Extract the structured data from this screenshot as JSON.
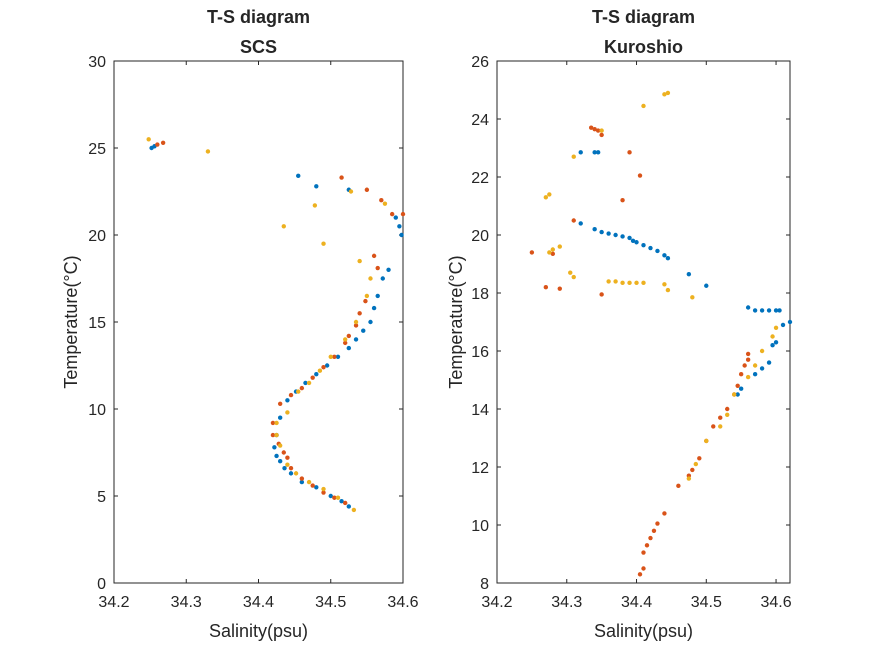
{
  "chart_data": [
    {
      "type": "scatter",
      "title": "T-S diagram",
      "subtitle": "SCS",
      "xlabel": "Salinity(psu)",
      "ylabel": "Temperature(°C)",
      "xlim": [
        34.2,
        34.6
      ],
      "ylim": [
        0,
        30
      ],
      "x_ticks": [
        "34.2",
        "34.3",
        "34.4",
        "34.5",
        "34.6"
      ],
      "y_ticks": [
        "0",
        "5",
        "10",
        "15",
        "20",
        "25",
        "30"
      ],
      "grid": false,
      "series": [
        {
          "color": "#0072BD",
          "x": [
            34.252,
            34.256,
            34.455,
            34.48,
            34.525,
            34.59,
            34.595,
            34.598,
            34.58,
            34.572,
            34.565,
            34.56,
            34.555,
            34.545,
            34.535,
            34.525,
            34.51,
            34.495,
            34.48,
            34.465,
            34.452,
            34.44,
            34.43,
            34.425,
            34.422,
            34.425,
            34.43,
            34.436,
            34.445,
            34.46,
            34.48,
            34.5,
            34.515,
            34.525
          ],
          "y": [
            25.0,
            25.1,
            23.4,
            22.8,
            22.6,
            21.0,
            20.5,
            20.0,
            18.0,
            17.5,
            16.5,
            15.8,
            15.0,
            14.5,
            14.0,
            13.5,
            13.0,
            12.5,
            12.0,
            11.5,
            11.0,
            10.5,
            9.5,
            8.5,
            7.8,
            7.3,
            7.0,
            6.6,
            6.3,
            5.8,
            5.5,
            5.0,
            4.7,
            4.4
          ]
        },
        {
          "color": "#D95319",
          "x": [
            34.26,
            34.268,
            34.515,
            34.55,
            34.57,
            34.585,
            34.6,
            34.56,
            34.565,
            34.548,
            34.54,
            34.535,
            34.525,
            34.52,
            34.505,
            34.49,
            34.475,
            34.46,
            34.445,
            34.43,
            34.42,
            34.42,
            34.428,
            34.435,
            34.44,
            34.445,
            34.46,
            34.475,
            34.49,
            34.505,
            34.52
          ],
          "y": [
            25.2,
            25.3,
            23.3,
            22.6,
            22.0,
            21.2,
            21.2,
            18.8,
            18.1,
            16.2,
            15.5,
            14.8,
            14.2,
            13.8,
            13.0,
            12.4,
            11.8,
            11.2,
            10.8,
            10.3,
            9.2,
            8.5,
            8.0,
            7.5,
            7.2,
            6.6,
            6.0,
            5.6,
            5.2,
            4.9,
            4.6
          ]
        },
        {
          "color": "#EDB120",
          "x": [
            34.248,
            34.33,
            34.435,
            34.478,
            34.49,
            34.528,
            34.575,
            34.54,
            34.555,
            34.55,
            34.535,
            34.52,
            34.5,
            34.485,
            34.47,
            34.455,
            34.44,
            34.425,
            34.425,
            34.43,
            34.44,
            34.452,
            34.47,
            34.49,
            34.51,
            34.532
          ],
          "y": [
            25.5,
            24.8,
            20.5,
            21.7,
            19.5,
            22.5,
            21.8,
            18.5,
            17.5,
            16.5,
            15.0,
            14.0,
            13.0,
            12.2,
            11.5,
            11.0,
            9.8,
            9.2,
            8.5,
            7.9,
            6.8,
            6.3,
            5.8,
            5.4,
            4.9,
            4.2
          ]
        }
      ]
    },
    {
      "type": "scatter",
      "title": "T-S diagram",
      "subtitle": "Kuroshio",
      "xlabel": "Salinity(psu)",
      "ylabel": "Temperature(°C)",
      "xlim": [
        34.2,
        34.62
      ],
      "ylim": [
        8,
        26
      ],
      "x_ticks": [
        "34.2",
        "34.3",
        "34.4",
        "34.5",
        "34.6"
      ],
      "y_ticks": [
        "8",
        "10",
        "12",
        "14",
        "16",
        "18",
        "20",
        "22",
        "24",
        "26"
      ],
      "grid": false,
      "series": [
        {
          "color": "#0072BD",
          "x": [
            34.32,
            34.34,
            34.345,
            34.32,
            34.34,
            34.35,
            34.36,
            34.37,
            34.38,
            34.39,
            34.395,
            34.4,
            34.41,
            34.42,
            34.43,
            34.44,
            34.445,
            34.475,
            34.5,
            34.56,
            34.57,
            34.58,
            34.59,
            34.6,
            34.605,
            34.62,
            34.61,
            34.6,
            34.595,
            34.59,
            34.58,
            34.57,
            34.55,
            34.545
          ],
          "y": [
            22.85,
            22.85,
            22.85,
            20.4,
            20.2,
            20.1,
            20.05,
            20.0,
            19.95,
            19.9,
            19.8,
            19.75,
            19.65,
            19.55,
            19.45,
            19.3,
            19.2,
            18.65,
            18.25,
            17.5,
            17.4,
            17.4,
            17.4,
            17.4,
            17.4,
            17.0,
            16.9,
            16.3,
            16.2,
            15.6,
            15.4,
            15.2,
            14.7,
            14.5
          ]
        },
        {
          "color": "#D95319",
          "x": [
            34.25,
            34.28,
            34.29,
            34.27,
            34.31,
            34.335,
            34.34,
            34.345,
            34.35,
            34.38,
            34.39,
            34.405,
            34.35,
            34.56,
            34.56,
            34.555,
            34.55,
            34.545,
            34.54,
            34.53,
            34.52,
            34.51,
            34.5,
            34.49,
            34.48,
            34.475,
            34.46,
            34.44,
            34.43,
            34.425,
            34.42,
            34.415,
            34.41,
            34.41,
            34.405
          ],
          "y": [
            19.4,
            19.35,
            18.15,
            18.2,
            20.5,
            23.7,
            23.65,
            23.6,
            23.45,
            21.2,
            22.85,
            22.05,
            17.95,
            15.9,
            15.7,
            15.5,
            15.2,
            14.8,
            14.5,
            14.0,
            13.7,
            13.4,
            12.9,
            12.3,
            11.9,
            11.7,
            11.35,
            10.4,
            10.05,
            9.8,
            9.55,
            9.3,
            9.05,
            8.5,
            8.3
          ]
        },
        {
          "color": "#EDB120",
          "x": [
            34.27,
            34.275,
            34.275,
            34.28,
            34.29,
            34.305,
            34.31,
            34.31,
            34.35,
            34.36,
            34.37,
            34.38,
            34.39,
            34.4,
            34.41,
            34.44,
            34.445,
            34.48,
            34.41,
            34.44,
            34.445,
            34.6,
            34.595,
            34.58,
            34.57,
            34.56,
            34.54,
            34.53,
            34.52,
            34.5,
            34.485,
            34.475
          ],
          "y": [
            21.3,
            21.4,
            19.4,
            19.5,
            19.6,
            18.7,
            18.55,
            22.7,
            23.6,
            18.4,
            18.4,
            18.35,
            18.35,
            18.35,
            18.35,
            24.85,
            24.9,
            17.85,
            24.45,
            18.3,
            18.1,
            16.8,
            16.5,
            16.0,
            15.5,
            15.1,
            14.5,
            13.8,
            13.4,
            12.9,
            12.1,
            11.6
          ]
        }
      ]
    }
  ]
}
